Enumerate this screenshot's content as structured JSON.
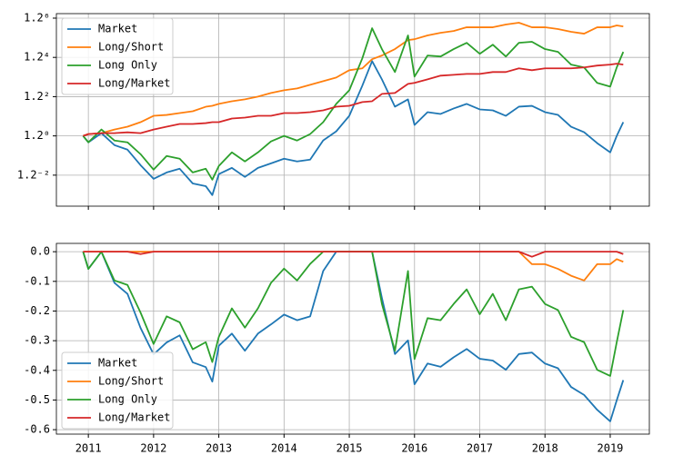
{
  "chart_data": [
    {
      "type": "line",
      "yscale": "log",
      "grid": true,
      "legend": "upper left",
      "show_xtick_labels": false,
      "x": [
        2010.92,
        2011.0,
        2011.2,
        2011.4,
        2011.6,
        2011.8,
        2012.0,
        2012.2,
        2012.4,
        2012.6,
        2012.8,
        2012.9,
        2013.0,
        2013.2,
        2013.4,
        2013.6,
        2013.8,
        2014.0,
        2014.2,
        2014.4,
        2014.6,
        2014.8,
        2015.0,
        2015.2,
        2015.35,
        2015.5,
        2015.7,
        2015.9,
        2016.0,
        2016.2,
        2016.4,
        2016.6,
        2016.8,
        2017.0,
        2017.2,
        2017.4,
        2017.6,
        2017.8,
        2018.0,
        2018.2,
        2018.4,
        2018.6,
        2018.8,
        2019.0,
        2019.1,
        2019.2
      ],
      "xlim": [
        2010.51,
        2019.6
      ],
      "xticks": [
        2011,
        2012,
        2013,
        2014,
        2015,
        2016,
        2017,
        2018,
        2019
      ],
      "ylim": [
        0.5206,
        3.114
      ],
      "yticks": [
        {
          "value": 0.6944,
          "label": "1.2⁻²"
        },
        {
          "value": 1,
          "label": "1.2⁰"
        },
        {
          "value": 1.44,
          "label": "1.2²"
        },
        {
          "value": 2.0736,
          "label": "1.2⁴"
        },
        {
          "value": 2.986,
          "label": "1.2⁶"
        }
      ],
      "series": [
        {
          "name": "Market",
          "color": "#1f77b4",
          "values": [
            1.0,
            0.942,
            1.026,
            0.918,
            0.88,
            0.762,
            0.671,
            0.712,
            0.737,
            0.643,
            0.627,
            0.577,
            0.701,
            0.743,
            0.683,
            0.743,
            0.775,
            0.809,
            0.789,
            0.802,
            0.959,
            1.043,
            1.205,
            1.595,
            2.003,
            1.691,
            1.312,
            1.404,
            1.107,
            1.247,
            1.226,
            1.29,
            1.346,
            1.279,
            1.268,
            1.205,
            1.312,
            1.322,
            1.247,
            1.215,
            1.089,
            1.035,
            0.935,
            0.858,
            1.0,
            1.136
          ]
        },
        {
          "name": "Long/Short",
          "color": "#ff7f0e",
          "values": [
            1.0,
            1.017,
            1.026,
            1.061,
            1.089,
            1.136,
            1.205,
            1.215,
            1.236,
            1.257,
            1.311,
            1.323,
            1.346,
            1.38,
            1.404,
            1.44,
            1.49,
            1.528,
            1.554,
            1.608,
            1.663,
            1.72,
            1.841,
            1.873,
            2.039,
            2.11,
            2.24,
            2.435,
            2.455,
            2.543,
            2.606,
            2.651,
            2.743,
            2.743,
            2.743,
            2.814,
            2.862,
            2.743,
            2.743,
            2.697,
            2.63,
            2.585,
            2.743,
            2.743,
            2.79,
            2.765
          ]
        },
        {
          "name": "Long Only",
          "color": "#2ca02c",
          "values": [
            1.0,
            0.942,
            1.061,
            0.958,
            0.942,
            0.844,
            0.731,
            0.83,
            0.809,
            0.712,
            0.737,
            0.666,
            0.756,
            0.858,
            0.789,
            0.858,
            0.95,
            1.0,
            0.958,
            1.017,
            1.136,
            1.346,
            1.528,
            2.056,
            2.719,
            2.24,
            1.81,
            2.543,
            1.735,
            2.11,
            2.091,
            2.24,
            2.374,
            2.144,
            2.333,
            2.091,
            2.374,
            2.397,
            2.24,
            2.183,
            1.939,
            1.889,
            1.636,
            1.581,
            1.889,
            2.183
          ]
        },
        {
          "name": "Long/Market",
          "color": "#d62728",
          "values": [
            1.0,
            1.017,
            1.026,
            1.026,
            1.034,
            1.026,
            1.061,
            1.089,
            1.117,
            1.117,
            1.126,
            1.136,
            1.136,
            1.175,
            1.185,
            1.205,
            1.205,
            1.236,
            1.236,
            1.247,
            1.268,
            1.311,
            1.323,
            1.369,
            1.38,
            1.477,
            1.49,
            1.621,
            1.636,
            1.691,
            1.75,
            1.764,
            1.779,
            1.779,
            1.81,
            1.81,
            1.873,
            1.841,
            1.873,
            1.873,
            1.873,
            1.889,
            1.922,
            1.939,
            1.955,
            1.939
          ]
        }
      ]
    },
    {
      "type": "line",
      "grid": true,
      "legend": "lower left",
      "show_xtick_labels": true,
      "x": [
        2010.92,
        2011.0,
        2011.2,
        2011.4,
        2011.6,
        2011.8,
        2012.0,
        2012.2,
        2012.4,
        2012.6,
        2012.8,
        2012.9,
        2013.0,
        2013.2,
        2013.4,
        2013.6,
        2013.8,
        2014.0,
        2014.2,
        2014.4,
        2014.6,
        2014.8,
        2015.0,
        2015.2,
        2015.35,
        2015.5,
        2015.7,
        2015.9,
        2016.0,
        2016.2,
        2016.4,
        2016.6,
        2016.8,
        2017.0,
        2017.2,
        2017.4,
        2017.6,
        2017.8,
        2018.0,
        2018.2,
        2018.4,
        2018.6,
        2018.8,
        2019.0,
        2019.1,
        2019.2
      ],
      "xlim": [
        2010.51,
        2019.6
      ],
      "xticks": [
        2011,
        2012,
        2013,
        2014,
        2015,
        2016,
        2017,
        2018,
        2019
      ],
      "ylim": [
        -0.615,
        0.028
      ],
      "yticks": [
        {
          "value": 0,
          "label": "0.0"
        },
        -0.1,
        -0.2,
        -0.3,
        -0.4,
        -0.5,
        -0.6
      ],
      "series": [
        {
          "name": "Market",
          "color": "#1f77b4",
          "values": [
            0,
            -0.058,
            0,
            -0.105,
            -0.142,
            -0.257,
            -0.346,
            -0.306,
            -0.282,
            -0.373,
            -0.389,
            -0.438,
            -0.317,
            -0.276,
            -0.334,
            -0.276,
            -0.245,
            -0.212,
            -0.231,
            -0.218,
            -0.065,
            0,
            0,
            0,
            0,
            -0.156,
            -0.345,
            -0.299,
            -0.447,
            -0.377,
            -0.388,
            -0.356,
            -0.328,
            -0.361,
            -0.367,
            -0.398,
            -0.345,
            -0.34,
            -0.377,
            -0.393,
            -0.456,
            -0.483,
            -0.533,
            -0.572,
            -0.501,
            -0.433
          ]
        },
        {
          "name": "Long/Short",
          "color": "#ff7f0e",
          "values": [
            0,
            0,
            0,
            0,
            0,
            0,
            0,
            0,
            0,
            0,
            0,
            0,
            0,
            0,
            0,
            0,
            0,
            0,
            0,
            0,
            0,
            0,
            0,
            0,
            0,
            0,
            0,
            0,
            0,
            0,
            0,
            0,
            0,
            0,
            0,
            0,
            0,
            -0.042,
            -0.042,
            -0.058,
            -0.081,
            -0.097,
            -0.042,
            -0.042,
            -0.025,
            -0.034
          ]
        },
        {
          "name": "Long Only",
          "color": "#2ca02c",
          "values": [
            0,
            -0.058,
            0,
            -0.097,
            -0.112,
            -0.205,
            -0.311,
            -0.218,
            -0.238,
            -0.329,
            -0.305,
            -0.372,
            -0.287,
            -0.191,
            -0.256,
            -0.191,
            -0.105,
            -0.057,
            -0.097,
            -0.041,
            0,
            0,
            0,
            0,
            0,
            -0.176,
            -0.334,
            -0.065,
            -0.362,
            -0.224,
            -0.231,
            -0.176,
            -0.127,
            -0.211,
            -0.142,
            -0.231,
            -0.127,
            -0.118,
            -0.176,
            -0.197,
            -0.287,
            -0.305,
            -0.398,
            -0.419,
            -0.305,
            -0.197
          ]
        },
        {
          "name": "Long/Market",
          "color": "#d62728",
          "values": [
            0,
            0,
            0,
            0,
            0,
            -0.008,
            0,
            0,
            0,
            0,
            0,
            0,
            0,
            0,
            0,
            0,
            0,
            0,
            0,
            0,
            0,
            0,
            0,
            0,
            0,
            0,
            0,
            0,
            0,
            0,
            0,
            0,
            0,
            0,
            0,
            0,
            0,
            -0.017,
            0,
            0,
            0,
            0,
            0,
            0,
            0,
            -0.008
          ]
        }
      ]
    }
  ]
}
